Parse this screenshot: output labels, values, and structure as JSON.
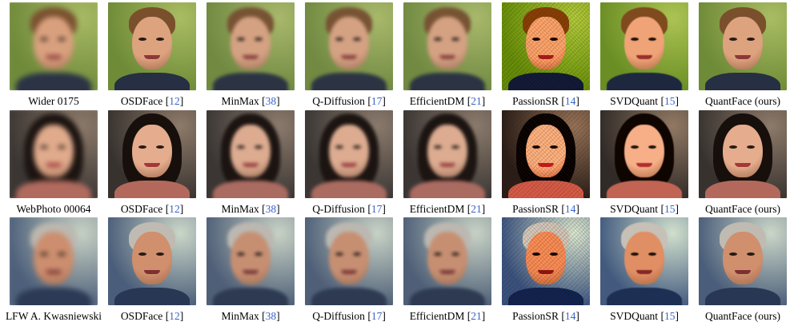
{
  "columns": [
    {
      "method": "",
      "ref": "",
      "style": "lq"
    },
    {
      "method": "OSDFace",
      "ref": "12",
      "style": "sharp"
    },
    {
      "method": "MinMax",
      "ref": "38",
      "style": "blur"
    },
    {
      "method": "Q-Diffusion",
      "ref": "17",
      "style": "blur"
    },
    {
      "method": "EfficientDM",
      "ref": "21",
      "style": "blur"
    },
    {
      "method": "PassionSR",
      "ref": "14",
      "style": "noisy"
    },
    {
      "method": "SVDQuant",
      "ref": "15",
      "style": "smooth"
    },
    {
      "method": "QuantFace (ours)",
      "ref": "",
      "style": "sharp"
    }
  ],
  "rows": [
    {
      "input_label": "Wider 0175",
      "subject": "young-man",
      "colors": {
        "bg": "#6f8a3a",
        "bg2": "#a7b964",
        "hair": "#7a5230",
        "skin": "#d9a07e",
        "body": "#2b3345",
        "mouth": "#8c3b3a"
      }
    },
    {
      "input_label": "WebPhoto 00064",
      "subject": "young-woman",
      "colors": {
        "bg": "#3b3633",
        "bg2": "#8c7a6a",
        "hair": "#1c1411",
        "skin": "#e0aa8c",
        "body": "#b06a5e",
        "mouth": "#a03c3c"
      }
    },
    {
      "input_label": "LFW A. Kwasniewski",
      "subject": "older-man",
      "colors": {
        "bg": "#4d5f7a",
        "bg2": "#c7d2c4",
        "hair": "#bcb8b0",
        "skin": "#cc8e6e",
        "body": "#2c3a55",
        "mouth": "#7c3434"
      }
    }
  ]
}
